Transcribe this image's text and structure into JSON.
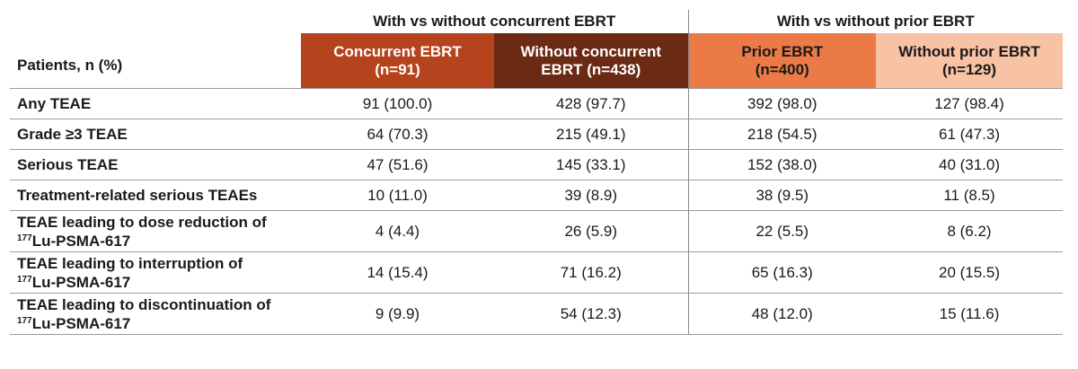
{
  "table": {
    "group_headers": [
      "With vs without concurrent EBRT",
      "With vs without prior EBRT"
    ],
    "row_header_label": "Patients, n (%)",
    "columns": [
      {
        "name": "Concurrent EBRT",
        "n": "(n=91)",
        "color": "#b5431d"
      },
      {
        "name": "Without concurrent",
        "name2": "EBRT (n=438)",
        "color": "#6b2a14"
      },
      {
        "name": "Prior EBRT",
        "n": "(n=400)",
        "color": "#ec7a46"
      },
      {
        "name": "Without prior EBRT",
        "n": "(n=129)",
        "color": "#f8c2a4"
      }
    ],
    "rows": [
      {
        "label": "Any TEAE",
        "values": [
          "91 (100.0)",
          "428 (97.7)",
          "392 (98.0)",
          "127 (98.4)"
        ]
      },
      {
        "label": "Grade ≥3 TEAE",
        "values": [
          "64 (70.3)",
          "215 (49.1)",
          "218 (54.5)",
          "61 (47.3)"
        ]
      },
      {
        "label": "Serious TEAE",
        "values": [
          "47 (51.6)",
          "145 (33.1)",
          "152 (38.0)",
          "40 (31.0)"
        ]
      },
      {
        "label": "Treatment-related serious TEAEs",
        "values": [
          "10 (11.0)",
          "39 (8.9)",
          "38 (9.5)",
          "11 (8.5)"
        ]
      },
      {
        "label": "TEAE leading to dose reduction of",
        "label_sup": "177",
        "label2": "Lu-PSMA-617",
        "values": [
          "4 (4.4)",
          "26 (5.9)",
          "22 (5.5)",
          "8 (6.2)"
        ]
      },
      {
        "label": "TEAE leading to interruption of",
        "label_sup": "177",
        "label2": "Lu-PSMA-617",
        "values": [
          "14 (15.4)",
          "71 (16.2)",
          "65 (16.3)",
          "20 (15.5)"
        ]
      },
      {
        "label": "TEAE leading to discontinuation of",
        "label_sup": "177",
        "label2": "Lu-PSMA-617",
        "values": [
          "9 (9.9)",
          "54 (12.3)",
          "48 (12.0)",
          "15 (11.6)"
        ]
      }
    ]
  }
}
